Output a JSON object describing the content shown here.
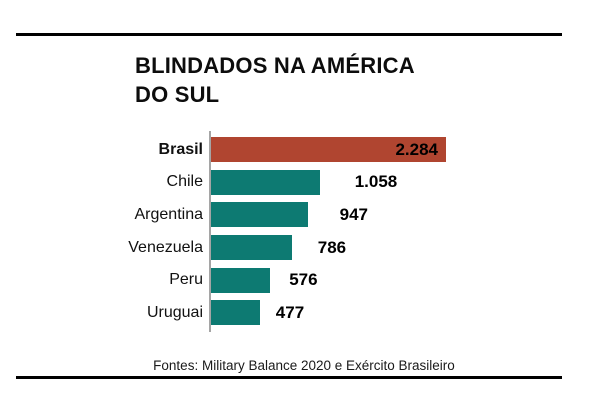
{
  "header": {
    "title_lines": [
      "BLINDADOS NA AMÉRICA",
      "DO SUL"
    ]
  },
  "footer": {
    "source": "Fontes: Military Balance 2020 e Exército Brasileiro"
  },
  "chart_data": {
    "type": "bar",
    "orientation": "horizontal",
    "title": "BLINDADOS NA AMÉRICA DO SUL",
    "categories": [
      "Brasil",
      "Chile",
      "Argentina",
      "Venezuela",
      "Peru",
      "Uruguai"
    ],
    "values": [
      2284,
      1058,
      947,
      786,
      576,
      477
    ],
    "value_labels": [
      "2.284",
      "1.058",
      "947",
      "786",
      "576",
      "477"
    ],
    "xlim": [
      0,
      2284
    ],
    "grid": false,
    "legend": "none",
    "highlight_category": "Brasil",
    "value_label_position": [
      "inside",
      "outside",
      "outside",
      "outside",
      "outside",
      "outside"
    ],
    "colors": {
      "highlight_bar": "#b04530",
      "bar": "#0d7a72",
      "axis": "#a5a5a5",
      "text": "#111111",
      "rule": "#000000"
    },
    "source": "Fontes: Military Balance 2020 e Exército Brasileiro"
  }
}
